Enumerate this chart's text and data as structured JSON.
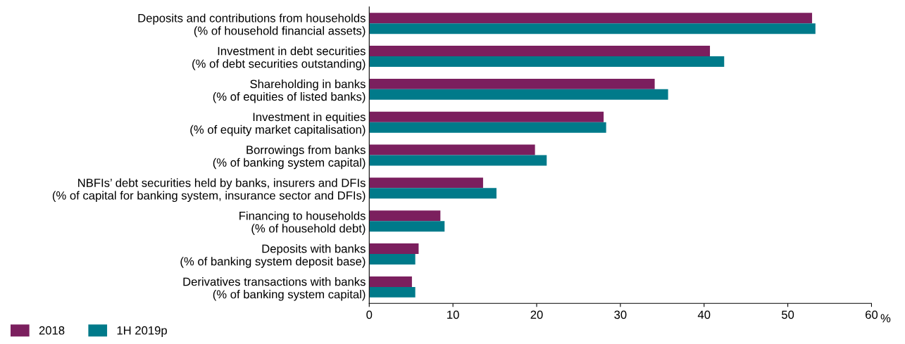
{
  "chart_data": {
    "type": "bar",
    "orientation": "horizontal",
    "xlabel": "%",
    "categories": [
      "Deposits and contributions from households\n(% of household financial assets)",
      "Investment in debt securities\n(% of debt securities outstanding)",
      "Shareholding in banks\n(% of equities of listed banks)",
      "Investment in equities\n(% of equity market capitalisation)",
      "Borrowings from banks\n(% of banking system capital)",
      "NBFIs’ debt securities held by banks, insurers and DFIs\n(% of capital for banking system, insurance sector and DFIs)",
      "Financing to households\n(% of household debt)",
      "Deposits with banks\n(% of banking system deposit base)",
      "Derivatives transactions with banks\n(% of banking system capital)"
    ],
    "series": [
      {
        "name": "2018",
        "color": "#7b1f5e",
        "values": [
          52.9,
          40.7,
          34.1,
          28.0,
          19.8,
          13.6,
          8.5,
          5.9,
          5.1
        ]
      },
      {
        "name": "1H 2019p",
        "color": "#007a8a",
        "values": [
          53.3,
          42.4,
          35.7,
          28.3,
          21.2,
          15.2,
          9.0,
          5.5,
          5.5
        ]
      }
    ],
    "xlim": [
      0,
      60
    ],
    "xticks": [
      0,
      10,
      20,
      30,
      40,
      50,
      60
    ],
    "grid": false,
    "legend": "bottom left"
  }
}
